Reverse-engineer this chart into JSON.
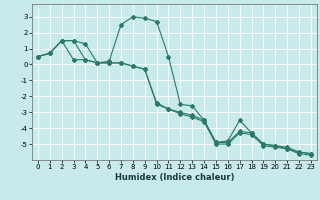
{
  "xlabel": "Humidex (Indice chaleur)",
  "background_color": "#c8eaea",
  "grid_color": "#ffffff",
  "line_color": "#2a7a6a",
  "xlim": [
    -0.5,
    23.5
  ],
  "ylim": [
    -6.0,
    3.8
  ],
  "yticks": [
    -5,
    -4,
    -3,
    -2,
    -1,
    0,
    1,
    2,
    3
  ],
  "xticks": [
    0,
    1,
    2,
    3,
    4,
    5,
    6,
    7,
    8,
    9,
    10,
    11,
    12,
    13,
    14,
    15,
    16,
    17,
    18,
    19,
    20,
    21,
    22,
    23
  ],
  "line1_x": [
    0,
    1,
    2,
    3,
    4,
    5,
    6,
    7,
    8,
    9,
    10,
    11,
    12,
    13,
    14,
    15,
    16,
    17,
    18,
    19,
    20,
    21,
    22,
    23
  ],
  "line1_y": [
    0.5,
    0.7,
    1.5,
    1.5,
    1.3,
    0.1,
    0.2,
    2.5,
    3.0,
    2.9,
    2.7,
    0.5,
    -2.5,
    -2.6,
    -3.5,
    -4.9,
    -4.8,
    -3.5,
    -4.3,
    -5.0,
    -5.1,
    -5.3,
    -5.5,
    -5.6
  ],
  "line2_x": [
    0,
    1,
    2,
    3,
    4,
    5,
    6,
    7,
    8,
    9,
    10,
    11,
    12,
    13,
    14,
    15,
    16,
    17,
    18,
    19,
    20,
    21,
    22,
    23
  ],
  "line2_y": [
    0.5,
    0.7,
    1.5,
    1.5,
    0.3,
    0.1,
    0.1,
    0.1,
    -0.1,
    -0.3,
    -2.5,
    -2.8,
    -3.0,
    -3.2,
    -3.5,
    -4.9,
    -4.9,
    -4.2,
    -4.3,
    -5.0,
    -5.1,
    -5.2,
    -5.5,
    -5.6
  ],
  "line3_x": [
    0,
    1,
    2,
    3,
    4,
    5,
    6,
    7,
    8,
    9,
    10,
    11,
    12,
    13,
    14,
    15,
    16,
    17,
    18,
    19,
    20,
    21,
    22,
    23
  ],
  "line3_y": [
    0.5,
    0.7,
    1.5,
    0.3,
    0.3,
    0.1,
    0.1,
    0.1,
    -0.1,
    -0.3,
    -2.4,
    -2.8,
    -3.1,
    -3.3,
    -3.6,
    -5.0,
    -5.0,
    -4.3,
    -4.4,
    -5.1,
    -5.2,
    -5.3,
    -5.6,
    -5.7
  ],
  "marker": "D",
  "markersize": 2.0,
  "linewidth": 0.8,
  "tick_fontsize": 5.0,
  "xlabel_fontsize": 6.0
}
